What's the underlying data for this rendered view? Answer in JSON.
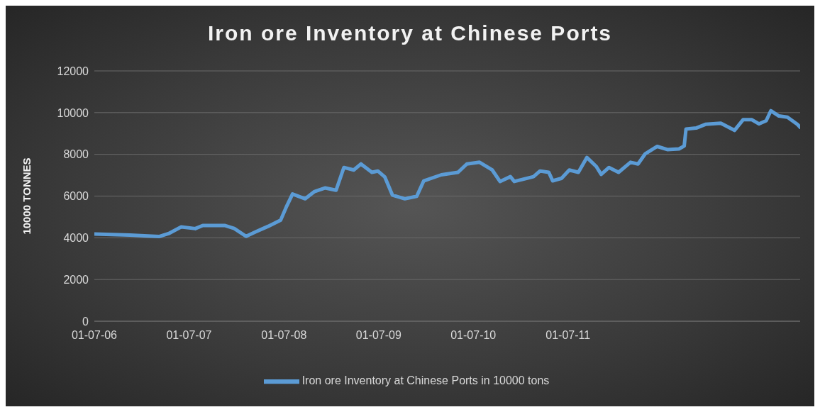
{
  "chart_data": {
    "type": "line",
    "title": "Iron ore Inventory at Chinese Ports",
    "ylabel": "10000 TONNES",
    "x": [
      "2006-07-01",
      "2006-11-15",
      "2007-03-07",
      "2007-04-13",
      "2007-06-01",
      "2007-07-25",
      "2007-08-23",
      "2007-11-15",
      "2007-12-22",
      "2008-02-06",
      "2008-03-15",
      "2008-05-01",
      "2008-06-18",
      "2008-07-12",
      "2008-08-03",
      "2008-09-21",
      "2008-10-27",
      "2008-12-06",
      "2009-01-18",
      "2009-02-17",
      "2009-03-27",
      "2009-04-24",
      "2009-06-05",
      "2009-06-28",
      "2009-07-25",
      "2009-08-23",
      "2009-10-10",
      "2009-11-25",
      "2009-12-22",
      "2010-02-28",
      "2010-05-03",
      "2010-06-06",
      "2010-07-25",
      "2010-09-12",
      "2010-10-12",
      "2010-11-21",
      "2010-12-06",
      "2011-02-18",
      "2011-03-15",
      "2011-04-18",
      "2011-05-03",
      "2011-06-06",
      "2011-07-06",
      "2011-08-10",
      "2011-09-12",
      "2011-10-18",
      "2011-11-06",
      "2011-12-06",
      "2012-01-12",
      "2012-02-27",
      "2012-03-27",
      "2012-04-24",
      "2012-06-09",
      "2012-07-18",
      "2012-09-01",
      "2012-09-21",
      "2012-09-28",
      "2012-11-06",
      "2012-12-12",
      "2013-02-09",
      "2013-04-03",
      "2013-05-06",
      "2013-06-09",
      "2013-07-06",
      "2013-08-03",
      "2013-08-21",
      "2013-09-21",
      "2013-10-24",
      "2013-12-01",
      "2013-12-12"
    ],
    "series": [
      {
        "name": "Iron ore Inventory at Chinese Ports in 10000 tons",
        "color": "#5b9bd5",
        "values": [
          4180,
          4130,
          4060,
          4200,
          4520,
          4440,
          4590,
          4590,
          4450,
          4070,
          4290,
          4550,
          4840,
          5530,
          6100,
          5870,
          6220,
          6390,
          6280,
          7370,
          7250,
          7540,
          7140,
          7200,
          6910,
          6050,
          5870,
          5990,
          6730,
          7020,
          7140,
          7540,
          7620,
          7250,
          6700,
          6930,
          6700,
          6930,
          7200,
          7140,
          6730,
          6850,
          7250,
          7140,
          7850,
          7420,
          7040,
          7370,
          7140,
          7620,
          7540,
          8030,
          8380,
          8230,
          8260,
          8400,
          9210,
          9260,
          9440,
          9490,
          9150,
          9660,
          9660,
          9460,
          9610,
          10090,
          9840,
          9780,
          9440,
          9300
        ]
      }
    ],
    "xlim": [
      "2006-07-01",
      "2013-12-12"
    ],
    "xticks": [
      {
        "value": "2006-07-01",
        "label": "01-07-06"
      },
      {
        "value": "2007-07-01",
        "label": "01-07-07"
      },
      {
        "value": "2008-07-01",
        "label": "01-07-08"
      },
      {
        "value": "2009-07-01",
        "label": "01-07-09"
      },
      {
        "value": "2010-07-01",
        "label": "01-07-10"
      },
      {
        "value": "2011-07-01",
        "label": "01-07-11"
      }
    ],
    "ylim": [
      0,
      12000
    ],
    "yticks": [
      0,
      2000,
      4000,
      6000,
      8000,
      10000,
      12000
    ],
    "grid": "y",
    "legend": "bottom",
    "marker": "none",
    "line_style": "solid"
  }
}
